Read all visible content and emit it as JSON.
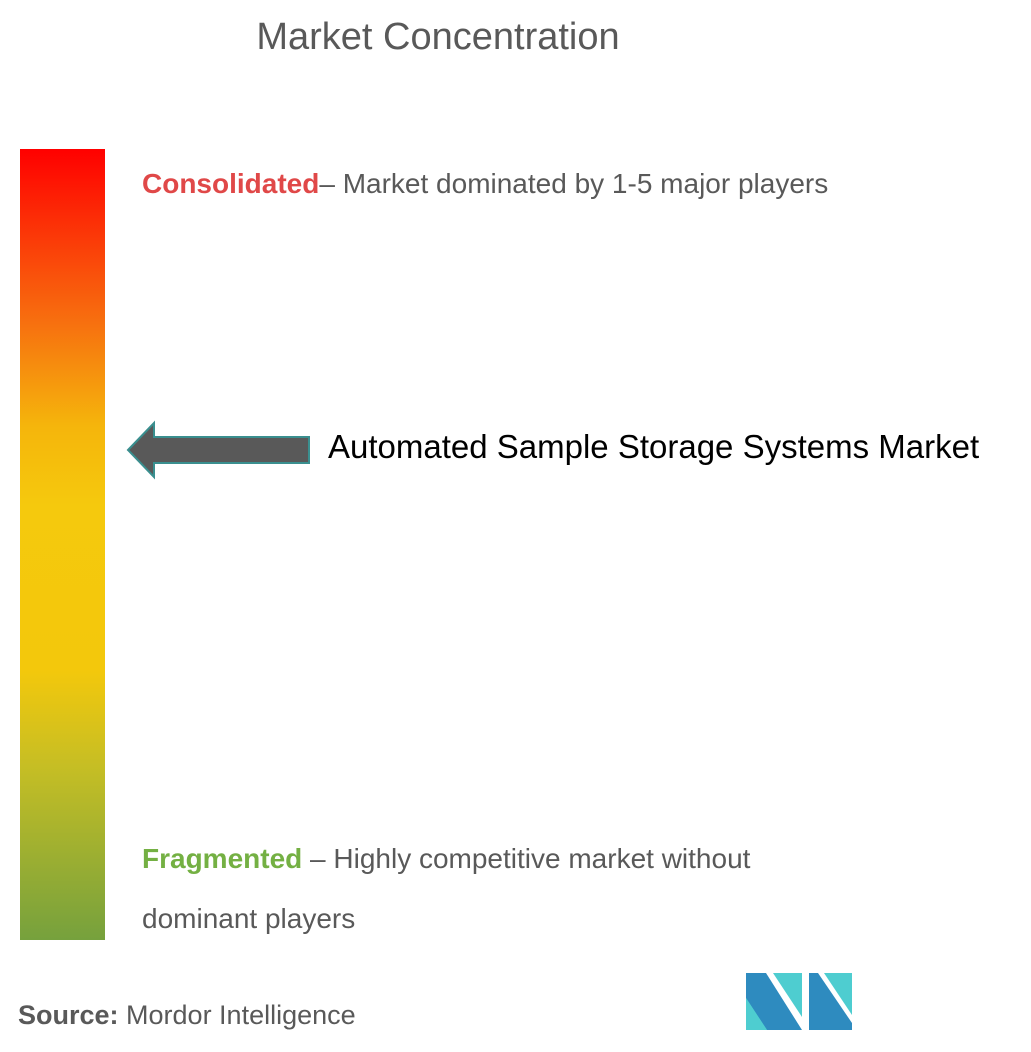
{
  "title": "Market Concentration",
  "scale": {
    "top_color": "#ff0000",
    "middle_color": "#f5c90d",
    "bottom_color": "#76a13d"
  },
  "consolidated": {
    "label": "Consolidated",
    "text": "– Market dominated by 1-5 major players",
    "color": "#e04848"
  },
  "fragmented": {
    "label": "Fragmented",
    "text": " – Highly competitive market without dominant players",
    "color": "#74b043"
  },
  "market": {
    "name": "Automated Sample Storage Systems Market",
    "arrow_icon": "left-arrow-icon"
  },
  "source": {
    "label": "Source:",
    "value": " Mordor Intelligence"
  },
  "logo": {
    "name": "mordor-intelligence-logo",
    "colors": [
      "#2e8bbf",
      "#4ecdd0"
    ]
  }
}
